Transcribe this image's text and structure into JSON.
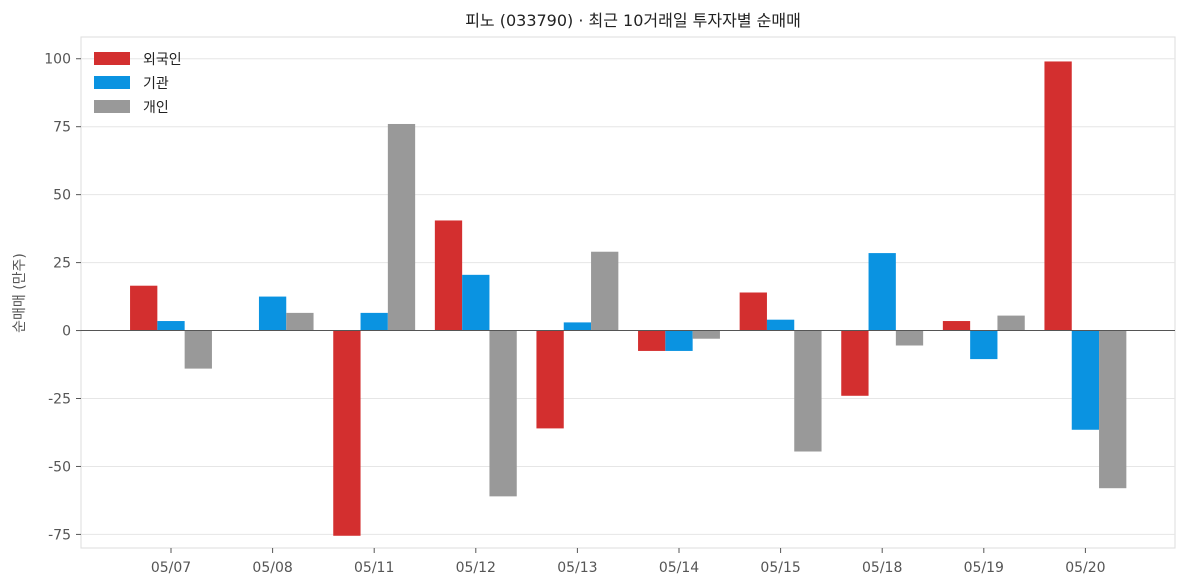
{
  "chart_data": {
    "type": "bar",
    "title": "피노 (033790) · 최근 10거래일 투자자별 순매매",
    "xlabel": "",
    "ylabel": "순매매 (만주)",
    "categories": [
      "05/07",
      "05/08",
      "05/11",
      "05/12",
      "05/13",
      "05/14",
      "05/15",
      "05/18",
      "05/19",
      "05/20"
    ],
    "series": [
      {
        "name": "외국인",
        "color": "#d32f2f",
        "values": [
          16.5,
          0,
          -75.5,
          40.5,
          -36,
          -7.5,
          14,
          -24,
          3.5,
          99
        ]
      },
      {
        "name": "기관",
        "color": "#0a93e1",
        "values": [
          3.5,
          12.5,
          6.5,
          20.5,
          3,
          -7.5,
          4,
          28.5,
          -10.5,
          -36.5
        ]
      },
      {
        "name": "개인",
        "color": "#999999",
        "values": [
          -14,
          6.5,
          76,
          -61,
          29,
          -3,
          -44.5,
          -5.5,
          5.5,
          -58
        ]
      }
    ],
    "ylim": [
      -80,
      108
    ],
    "yticks": [
      -75,
      -50,
      -25,
      0,
      25,
      50,
      75,
      100
    ],
    "grid": true,
    "legend": "top-left"
  }
}
